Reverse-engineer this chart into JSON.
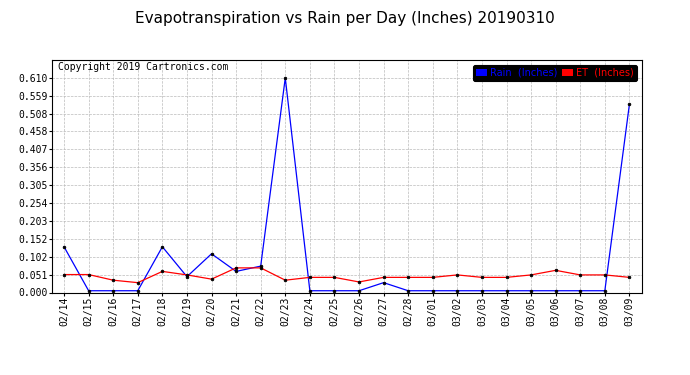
{
  "title": "Evapotranspiration vs Rain per Day (Inches) 20190310",
  "copyright": "Copyright 2019 Cartronics.com",
  "x_labels": [
    "02/14",
    "02/15",
    "02/16",
    "02/17",
    "02/18",
    "02/19",
    "02/20",
    "02/21",
    "02/22",
    "02/23",
    "02/24",
    "02/25",
    "02/26",
    "02/27",
    "02/28",
    "03/01",
    "03/02",
    "03/03",
    "03/04",
    "03/05",
    "03/06",
    "03/07",
    "03/08",
    "03/09"
  ],
  "rain_values": [
    0.13,
    0.005,
    0.005,
    0.005,
    0.13,
    0.045,
    0.11,
    0.06,
    0.075,
    0.61,
    0.005,
    0.005,
    0.005,
    0.028,
    0.005,
    0.005,
    0.005,
    0.005,
    0.005,
    0.005,
    0.005,
    0.005,
    0.005,
    0.535
  ],
  "et_values": [
    0.051,
    0.051,
    0.035,
    0.028,
    0.06,
    0.05,
    0.038,
    0.07,
    0.07,
    0.035,
    0.043,
    0.043,
    0.03,
    0.043,
    0.043,
    0.043,
    0.05,
    0.043,
    0.043,
    0.05,
    0.063,
    0.05,
    0.05,
    0.043
  ],
  "ylim": [
    0.0,
    0.661
  ],
  "yticks": [
    0.0,
    0.051,
    0.102,
    0.152,
    0.203,
    0.254,
    0.305,
    0.356,
    0.407,
    0.458,
    0.508,
    0.559,
    0.61
  ],
  "rain_color": "#0000ff",
  "et_color": "#ff0000",
  "background_color": "#ffffff",
  "grid_color": "#bbbbbb",
  "title_fontsize": 11,
  "tick_fontsize": 7,
  "copyright_fontsize": 7,
  "legend_rain_label": "Rain  (Inches)",
  "legend_et_label": "ET  (Inches)"
}
